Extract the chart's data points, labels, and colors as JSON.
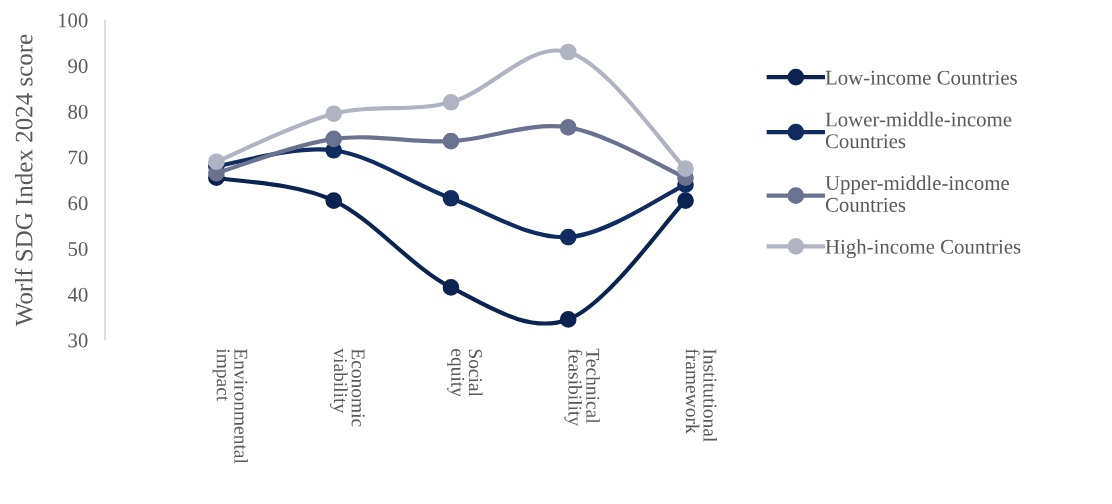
{
  "chart_data": {
    "type": "line",
    "ylabel": "Worlf SDG Index 2024 score",
    "categories": [
      "Environmental impact",
      "Economic viability",
      "Social equity",
      "Technical feasibility",
      "Institutional framework"
    ],
    "series": [
      {
        "name": "Low-income Countries",
        "color": "#0c2250",
        "values": [
          65.5,
          60.5,
          41.5,
          34.5,
          60.5
        ]
      },
      {
        "name": "Lower-middle-income Countries",
        "color": "#0f2b60",
        "values": [
          68,
          71.5,
          61,
          52.5,
          64
        ]
      },
      {
        "name": "Upper-middle-income Countries",
        "color": "#6b7290",
        "values": [
          66.5,
          74,
          73.5,
          76.5,
          65.5
        ]
      },
      {
        "name": "High-income Countries",
        "color": "#b0b4c2",
        "values": [
          69,
          79.5,
          82,
          93,
          67.5
        ]
      }
    ],
    "ylim": [
      30,
      100
    ],
    "yticks": [
      30,
      40,
      50,
      60,
      70,
      80,
      90,
      100
    ],
    "grid": false,
    "legend": "right",
    "marker": "circle",
    "line_style": "solid"
  }
}
